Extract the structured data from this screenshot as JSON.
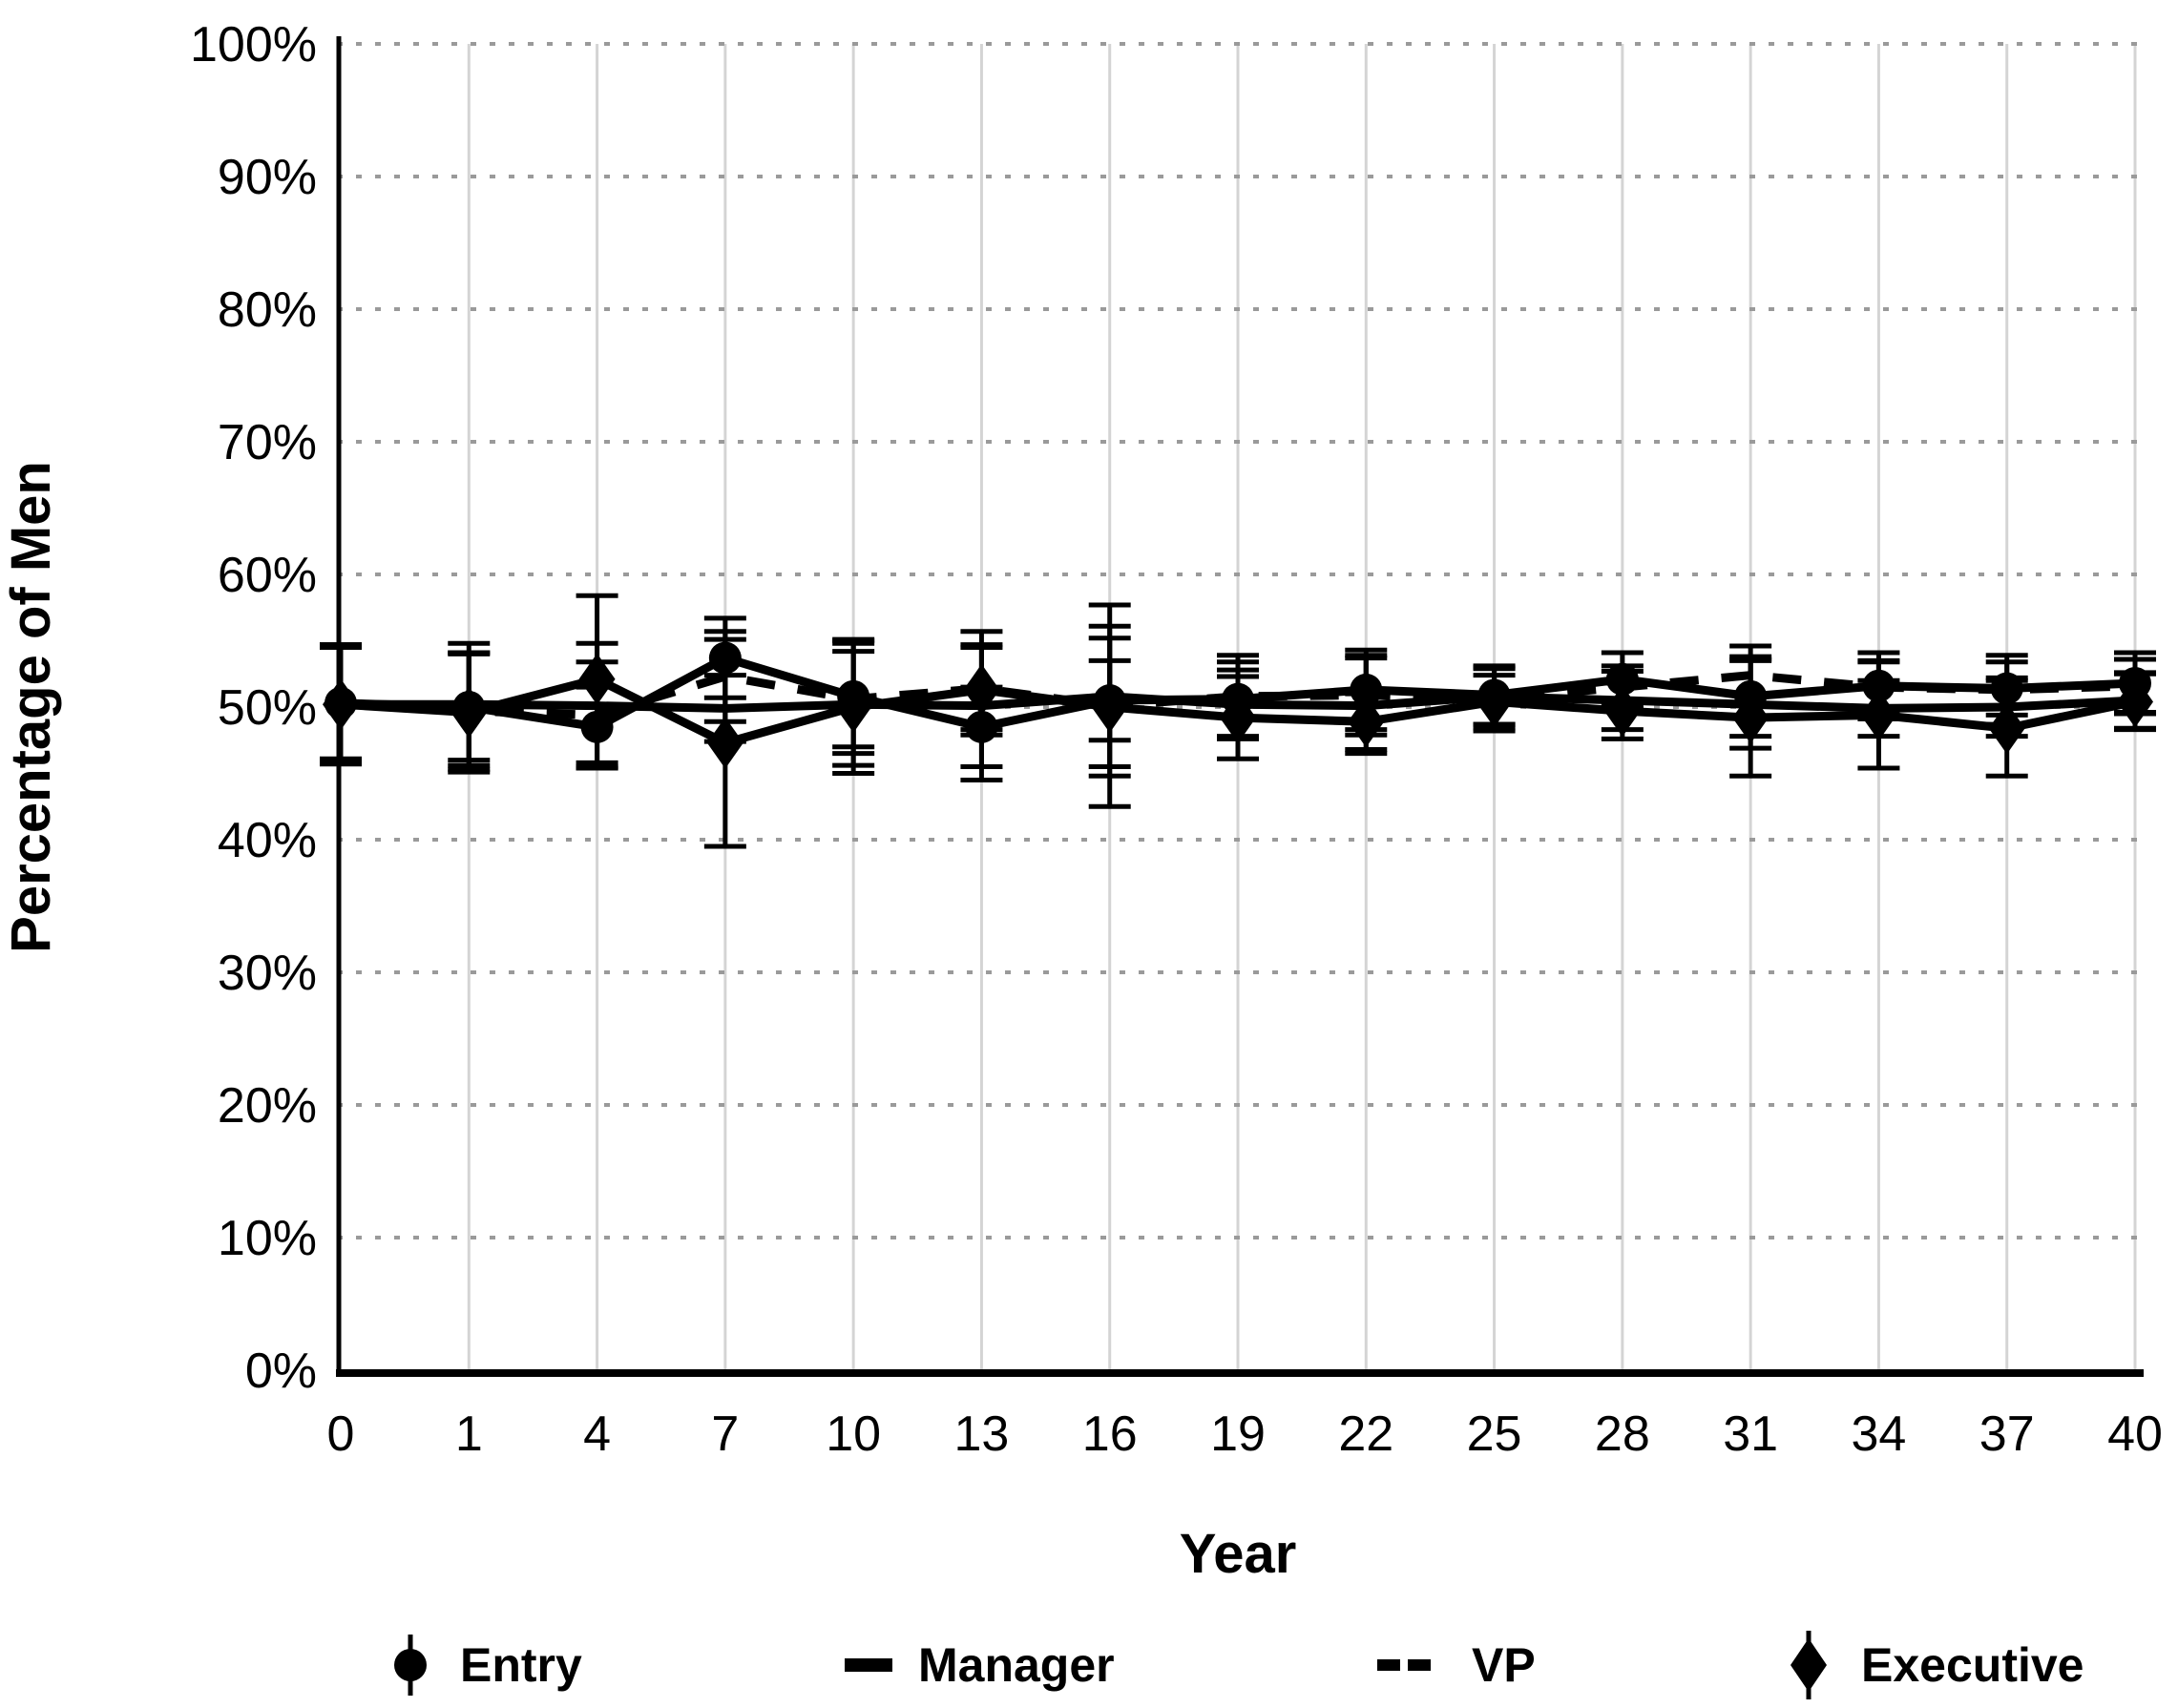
{
  "chart_data": {
    "type": "line",
    "title": "",
    "xlabel": "Year",
    "ylabel": "Percentage of Men",
    "x_tick_labels": [
      "0",
      "1",
      "4",
      "7",
      "10",
      "13",
      "16",
      "19",
      "22",
      "25",
      "28",
      "31",
      "34",
      "37",
      "40"
    ],
    "y_tick_labels": [
      "0%",
      "10%",
      "20%",
      "30%",
      "40%",
      "50%",
      "60%",
      "70%",
      "80%",
      "90%",
      "100%"
    ],
    "ylim": [
      0,
      100
    ],
    "y_step": 10,
    "grid": {
      "horizontal": "dotted",
      "vertical": "solid"
    },
    "legend_position": "bottom",
    "series": [
      {
        "name": "Entry",
        "marker": "circle",
        "line": "solid",
        "values": [
          50.3,
          50.0,
          48.5,
          53.7,
          50.8,
          48.5,
          50.5,
          50.6,
          51.3,
          50.9,
          52.1,
          50.8,
          51.6,
          51.4,
          51.8
        ],
        "error": [
          4.2,
          4.0,
          3.0,
          3.0,
          4.3,
          3.0,
          3.0,
          2.8,
          3.0,
          2.2,
          2.0,
          3.0,
          2.5,
          2.0,
          2.3
        ]
      },
      {
        "name": "Manager",
        "marker": "none",
        "line": "solid",
        "values": [
          50.2,
          50.2,
          50.1,
          49.9,
          50.2,
          50.1,
          50.8,
          50.2,
          50.1,
          50.8,
          50.5,
          50.2,
          49.9,
          50.0,
          50.5
        ],
        "error": [
          4.5,
          4.6,
          4.7,
          2.5,
          4.6,
          5.6,
          5.3,
          2.6,
          3.6,
          2.1,
          2.2,
          3.3,
          2.1,
          2.2,
          2.1
        ]
      },
      {
        "name": "VP",
        "marker": "none",
        "line": "dashed",
        "values": [
          50.3,
          49.7,
          49.4,
          52.3,
          50.6,
          51.4,
          50.1,
          50.8,
          50.9,
          50.6,
          51.5,
          52.4,
          51.5,
          51.3,
          51.6
        ],
        "error": [
          4.4,
          4.4,
          4.0,
          3.4,
          3.6,
          3.1,
          7.6,
          3.1,
          3.0,
          2.4,
          1.6,
          2.2,
          2.0,
          2.6,
          2.0
        ]
      },
      {
        "name": "Executive",
        "marker": "diamond",
        "line": "solid",
        "values": [
          50.2,
          49.6,
          52.1,
          47.3,
          50.0,
          51.3,
          50.0,
          49.2,
          48.9,
          50.4,
          49.7,
          49.2,
          49.4,
          48.4,
          50.4
        ],
        "error": [
          4.3,
          4.5,
          6.3,
          7.8,
          5.0,
          3.4,
          5.2,
          3.1,
          2.1,
          2.0,
          2.1,
          4.4,
          4.0,
          3.6,
          2.1
        ]
      }
    ],
    "colors": {
      "series": "#000000",
      "grid_horizontal": "#9a9a9a",
      "grid_vertical": "#d4d4d4",
      "axis": "#000000",
      "background": "#ffffff"
    }
  }
}
